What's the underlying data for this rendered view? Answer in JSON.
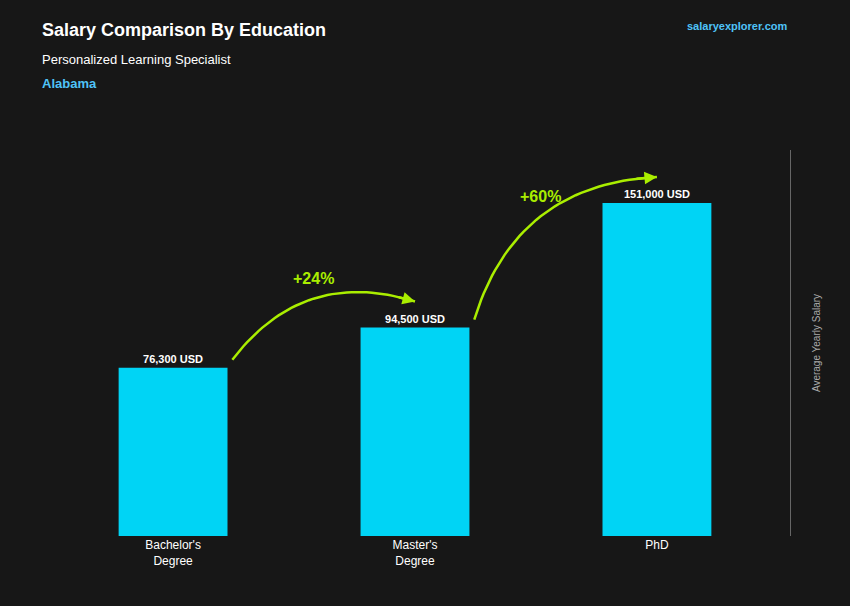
{
  "chart_data": {
    "type": "bar",
    "title": "Salary Comparison By Education",
    "subtitle": [
      "Personalized Learning Specialist",
      "Alabama"
    ],
    "ylabel": "Average Yearly Salary",
    "categories": [
      "Bachelor's\nDegree",
      "Master's\nDegree",
      "PhD"
    ],
    "values": [
      76300,
      94500,
      151000
    ],
    "value_labels": [
      "76,300 USD",
      "94,500 USD",
      "151,000 USD"
    ],
    "data_labels": true,
    "color": "#00d4f5",
    "ylim": [
      0,
      175000
    ],
    "tick_labels": "x",
    "grid": false,
    "annotations": [
      {
        "text": "+24%",
        "from": "Bachelor's\nDegree",
        "to": "Master's\nDegree",
        "color": "#aaee00"
      },
      {
        "text": "+60%",
        "from": "Master's\nDegree",
        "to": "PhD",
        "color": "#aaee00"
      },
      {
        "text": "salaryexplorer.com"
      }
    ]
  }
}
